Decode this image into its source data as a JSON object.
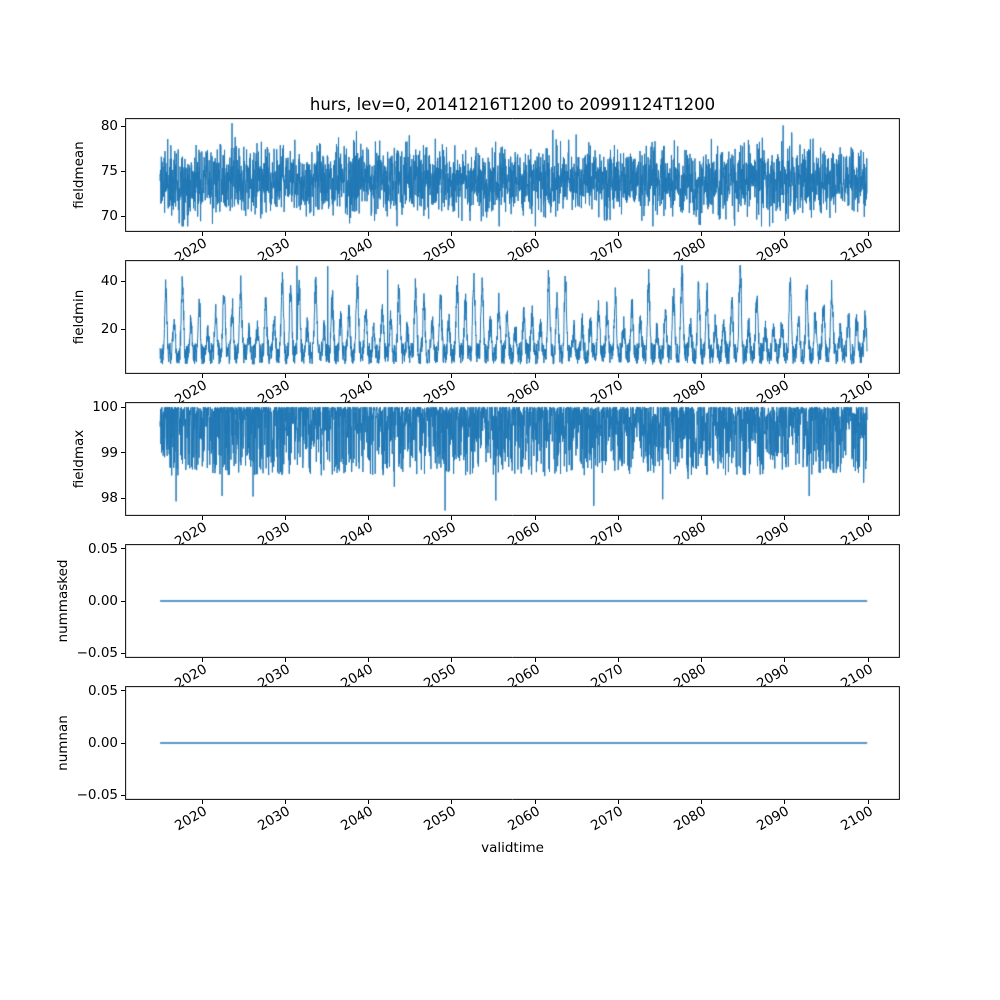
{
  "figure": {
    "title": "hurs, lev=0, 20141216T1200 to 20991124T1200",
    "background": "#ffffff",
    "line_color": "#1f77b4",
    "frame_color": "#000000",
    "text_color": "#000000",
    "x": {
      "label": "validtime",
      "lim": [
        2010.75,
        2103.84
      ],
      "data_range": [
        2014.96,
        2099.9
      ],
      "ticks": [
        2020,
        2030,
        2040,
        2050,
        2060,
        2070,
        2080,
        2090,
        2100
      ],
      "tick_labels": [
        "2020",
        "2030",
        "2040",
        "2050",
        "2060",
        "2070",
        "2080",
        "2090",
        "2100"
      ],
      "tick_rotation_deg": 30
    }
  },
  "chart_data": {
    "type": "line",
    "title": "hurs, lev=0, 20141216T1200 to 20991124T1200",
    "xlabel": "validtime",
    "x_range": [
      2014.96,
      2099.9
    ],
    "xlim": [
      2010.75,
      2103.84
    ],
    "xticks": [
      2020,
      2030,
      2040,
      2050,
      2060,
      2070,
      2080,
      2090,
      2100
    ],
    "grid": false,
    "legend": "none",
    "axes": [
      {
        "name": "fieldmean",
        "ylabel": "fieldmean",
        "ylim": [
          68.22,
          80.93
        ],
        "yticks": [
          {
            "v": 70,
            "label": "70"
          },
          {
            "v": 75,
            "label": "75"
          },
          {
            "v": 80,
            "label": "80"
          }
        ],
        "stats": {
          "approx_mean": 73.9,
          "approx_min": 68.8,
          "approx_max": 80.3,
          "description": "dense high-frequency noise band mostly 71-77"
        },
        "series": {
          "kind": "noise",
          "seed": 11,
          "n": 3400,
          "mean": 73.9,
          "amp": 6.5,
          "clipMin": 68.85,
          "clipMax": 80.35,
          "extremes": [
            {
              "x": 2023.6,
              "v": 80.35
            },
            {
              "x": 2087.2,
              "v": 68.85
            },
            {
              "x": 2089.8,
              "v": 80.1
            }
          ]
        }
      },
      {
        "name": "fieldmin",
        "ylabel": "fieldmin",
        "ylim": [
          1.2,
          48.9
        ],
        "yticks": [
          {
            "v": 20,
            "label": "20"
          },
          {
            "v": 40,
            "label": "40"
          }
        ],
        "stats": {
          "approx_min": 3.6,
          "approx_max": 46.5,
          "description": "baseline 5-15 with annual spikes of varying height up to ~46"
        },
        "series": {
          "kind": "seasonal",
          "seed": 22,
          "n": 3400,
          "base": 5.2,
          "baseSpread": 9,
          "peakMin": 10,
          "peakMax": 40,
          "sharpness": 5,
          "phase": 0.15,
          "clipMin": 3.6,
          "clipMax": 46.6,
          "extremes": [
            {
              "x": 2031.4,
              "v": 46.5
            },
            {
              "x": 2035.1,
              "v": 46.3
            },
            {
              "x": 2042.3,
              "v": 44.8
            }
          ]
        }
      },
      {
        "name": "fieldmax",
        "ylabel": "fieldmax",
        "ylim": [
          97.61,
          100.11
        ],
        "yticks": [
          {
            "v": 98,
            "label": "98"
          },
          {
            "v": 99,
            "label": "99"
          },
          {
            "v": 100,
            "label": "100"
          }
        ],
        "stats": {
          "approx_max": 100,
          "approx_min": 97.73,
          "description": "capped at 100 with downward excursions, deepest ~97.7 near 2049"
        },
        "series": {
          "kind": "ceiling",
          "seed": 33,
          "n": 3400,
          "ceil": 100,
          "depth": 1.5,
          "power": 2.6,
          "rareP": 0.012,
          "rareExtra": 0.9,
          "clipMin": 97.73,
          "extremes": [
            {
              "x": 2049.2,
              "v": 97.73
            },
            {
              "x": 2055.3,
              "v": 97.95
            },
            {
              "x": 2022.4,
              "v": 98.05
            }
          ]
        }
      },
      {
        "name": "nummasked",
        "ylabel": "nummasked",
        "ylim": [
          -0.0548,
          0.0548
        ],
        "yticks": [
          {
            "v": -0.05,
            "label": "−0.05"
          },
          {
            "v": 0,
            "label": "0.00"
          },
          {
            "v": 0.05,
            "label": "0.05"
          }
        ],
        "stats": {
          "constant_value": 0,
          "description": "flat line at 0"
        },
        "series": {
          "kind": "const",
          "value": 0
        }
      },
      {
        "name": "numnan",
        "ylabel": "numnan",
        "ylim": [
          -0.0548,
          0.0548
        ],
        "yticks": [
          {
            "v": -0.05,
            "label": "−0.05"
          },
          {
            "v": 0,
            "label": "0.00"
          },
          {
            "v": 0.05,
            "label": "0.05"
          }
        ],
        "stats": {
          "constant_value": 0,
          "description": "flat line at 0"
        },
        "series": {
          "kind": "const",
          "value": 0
        }
      }
    ]
  }
}
